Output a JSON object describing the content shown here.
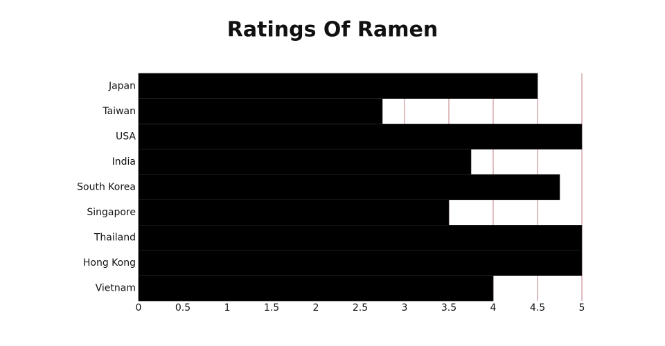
{
  "chart_data": {
    "type": "bar",
    "orientation": "horizontal",
    "title": "Ratings Of Ramen",
    "categories": [
      "Japan",
      "Taiwan",
      "USA",
      "India",
      "South Korea",
      "Singapore",
      "Thailand",
      "Hong Kong",
      "Vietnam"
    ],
    "values": [
      4.5,
      2.75,
      5,
      3.75,
      4.75,
      3.5,
      5,
      5,
      4
    ],
    "color": "#000000",
    "xlim": [
      0,
      5
    ],
    "xticks": [
      0,
      0.5,
      1,
      1.5,
      2,
      2.5,
      3,
      3.5,
      4,
      4.5,
      5
    ],
    "grid": true,
    "grid_color": "#c07c80"
  }
}
